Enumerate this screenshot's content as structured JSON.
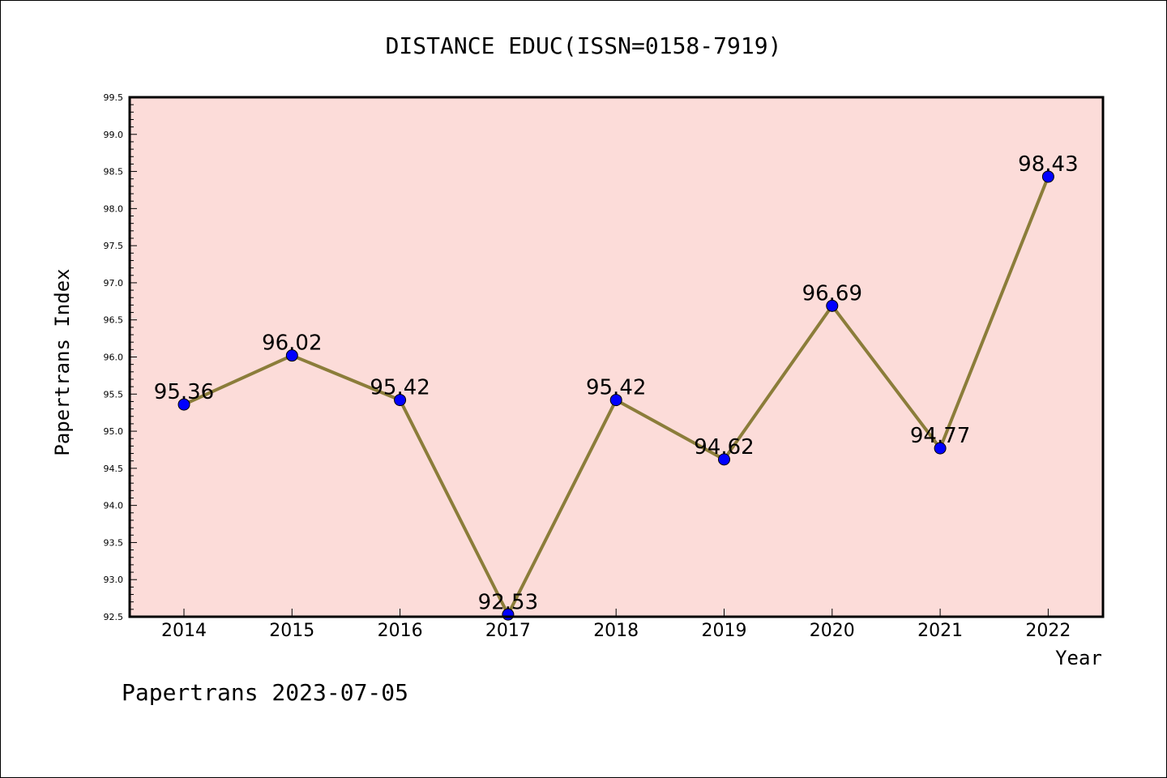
{
  "title": "DISTANCE EDUC(ISSN=0158-7919)",
  "footer": "Papertrans 2023-07-05",
  "colors": {
    "plot_background": "#fcdcd9",
    "line": "#8b7d3a",
    "marker": "#0000ff",
    "frame": "#000000"
  },
  "chart_data": {
    "type": "line",
    "title": "DISTANCE EDUC(ISSN=0158-7919)",
    "xlabel": "Year",
    "ylabel": "Papertrans Index",
    "categories": [
      "2014",
      "2015",
      "2016",
      "2017",
      "2018",
      "2019",
      "2020",
      "2021",
      "2022"
    ],
    "values": [
      95.36,
      96.02,
      95.42,
      92.53,
      95.42,
      94.62,
      96.69,
      94.77,
      98.43
    ],
    "data_labels": [
      "95.36",
      "96.02",
      "95.42",
      "92.53",
      "95.42",
      "94.62",
      "96.69",
      "94.77",
      "98.43"
    ],
    "ylim": [
      92.5,
      99.5
    ],
    "yticks": [
      "92.5",
      "93.0",
      "93.5",
      "94.0",
      "94.5",
      "95.0",
      "95.5",
      "96.0",
      "96.5",
      "97.0",
      "97.5",
      "98.0",
      "98.5",
      "99.0",
      "99.5"
    ],
    "grid": false,
    "legend": "none"
  }
}
